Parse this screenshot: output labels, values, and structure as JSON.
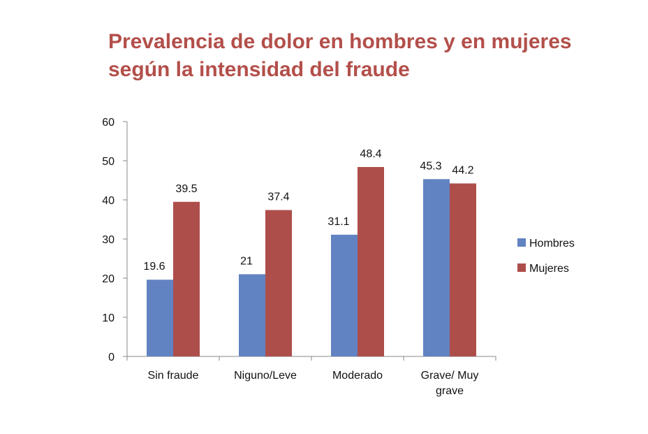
{
  "chart_data": {
    "type": "bar",
    "title": "Prevalencia de dolor en hombres y en mujeres según la intensidad del fraude",
    "categories": [
      [
        "Sin fraude"
      ],
      [
        "Niguno/Leve"
      ],
      [
        "Moderado"
      ],
      [
        "Grave/ Muy",
        "grave"
      ]
    ],
    "series": [
      {
        "name": "Hombres",
        "color": "#6283c2",
        "values": [
          19.6,
          21,
          31.1,
          45.3
        ],
        "labels": [
          "19.6",
          "21",
          "31.1",
          "45.3"
        ]
      },
      {
        "name": "Mujeres",
        "color": "#ad4e4b",
        "values": [
          39.5,
          37.4,
          48.4,
          44.2
        ],
        "labels": [
          "39.5",
          "37.4",
          "48.4",
          "44.2"
        ]
      }
    ],
    "ylim": [
      0,
      60
    ],
    "yticks": [
      "0",
      "10",
      "20",
      "30",
      "40",
      "50",
      "60"
    ],
    "grid": false,
    "legend": "right",
    "xlabel": "",
    "ylabel": ""
  }
}
